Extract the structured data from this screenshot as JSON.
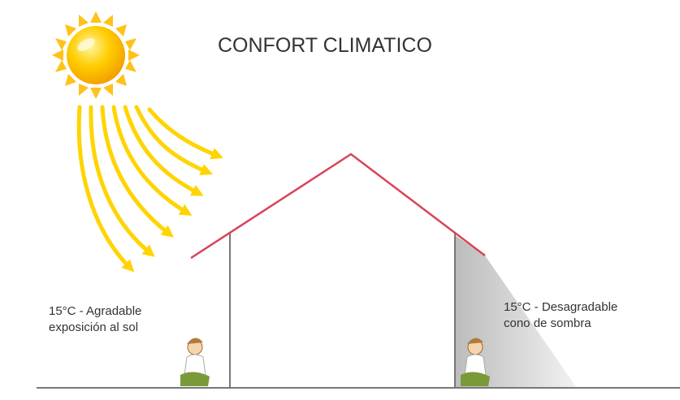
{
  "title": "CONFORT CLIMATICO",
  "left_label": {
    "line1": "15°C - Agradable",
    "line2": "exposición al sol"
  },
  "right_label": {
    "line1": "15°C - Desagradable",
    "line2": "cono de sombra"
  }
}
